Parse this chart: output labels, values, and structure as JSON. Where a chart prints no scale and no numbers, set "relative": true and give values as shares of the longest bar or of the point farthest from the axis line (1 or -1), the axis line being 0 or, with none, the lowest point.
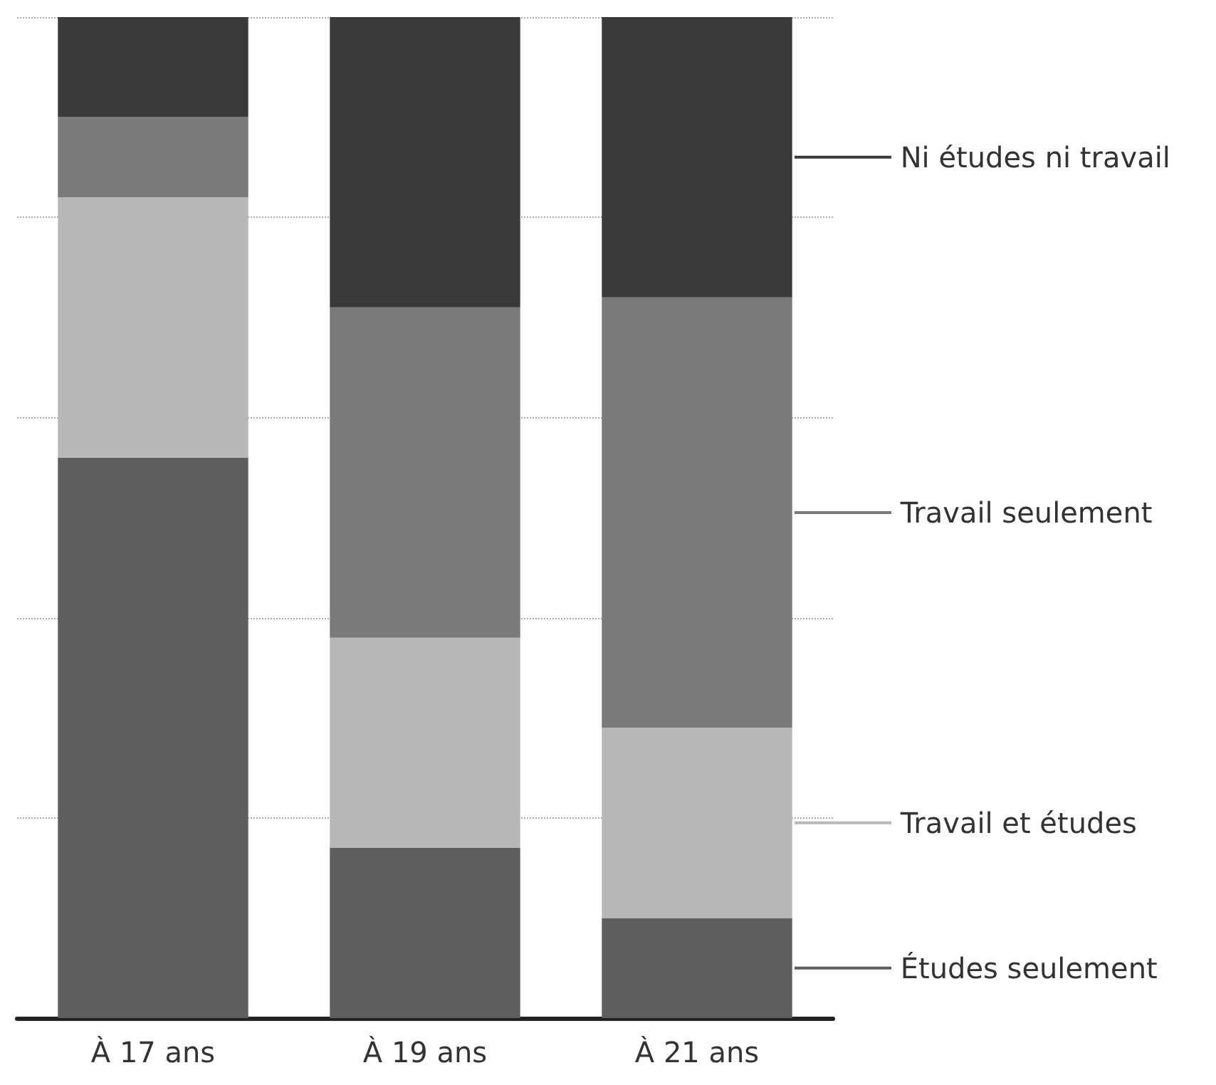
{
  "chart_data": {
    "type": "bar",
    "stacked": true,
    "relative": true,
    "grid": "y",
    "legend": "right",
    "categories": [
      "À 17 ans",
      "À 19 ans",
      "À 21 ans"
    ],
    "series": [
      {
        "name": "Études seulement",
        "color": "#5e5e5e",
        "values": [
          0.56,
          0.17,
          0.1
        ]
      },
      {
        "name": "Travail et études",
        "color": "#b8b8b8",
        "values": [
          0.26,
          0.21,
          0.19
        ]
      },
      {
        "name": "Travail seulement",
        "color": "#7a7a7a",
        "values": [
          0.08,
          0.33,
          0.43
        ]
      },
      {
        "name": "Ni études ni travail",
        "color": "#3a3a3a",
        "values": [
          0.1,
          0.29,
          0.28
        ]
      }
    ]
  }
}
